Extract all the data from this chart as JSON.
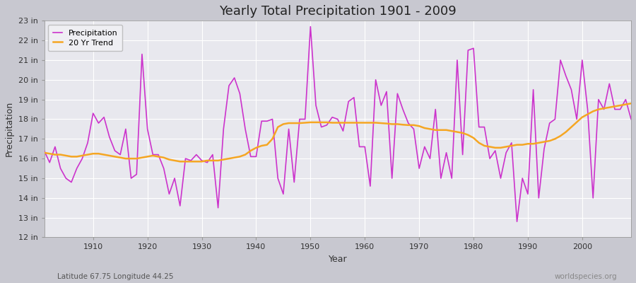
{
  "title": "Yearly Total Precipitation 1901 - 2009",
  "xlabel": "Year",
  "ylabel": "Precipitation",
  "subtitle_left": "Latitude 67.75 Longitude 44.25",
  "subtitle_right": "worldspecies.org",
  "ylim": [
    12,
    23
  ],
  "ytick_labels": [
    "12 in",
    "13 in",
    "14 in",
    "15 in",
    "16 in",
    "17 in",
    "18 in",
    "19 in",
    "20 in",
    "21 in",
    "22 in",
    "23 in"
  ],
  "ytick_values": [
    12,
    13,
    14,
    15,
    16,
    17,
    18,
    19,
    20,
    21,
    22,
    23
  ],
  "fig_bg_color": "#c8c8d0",
  "plot_bg_color": "#e8e8ee",
  "grid_color": "#ffffff",
  "precip_color": "#cc33cc",
  "trend_color": "#f5a623",
  "years": [
    1901,
    1902,
    1903,
    1904,
    1905,
    1906,
    1907,
    1908,
    1909,
    1910,
    1911,
    1912,
    1913,
    1914,
    1915,
    1916,
    1917,
    1918,
    1919,
    1920,
    1921,
    1922,
    1923,
    1924,
    1925,
    1926,
    1927,
    1928,
    1929,
    1930,
    1931,
    1932,
    1933,
    1934,
    1935,
    1936,
    1937,
    1938,
    1939,
    1940,
    1941,
    1942,
    1943,
    1944,
    1945,
    1946,
    1947,
    1948,
    1949,
    1950,
    1951,
    1952,
    1953,
    1954,
    1955,
    1956,
    1957,
    1958,
    1959,
    1960,
    1961,
    1962,
    1963,
    1964,
    1965,
    1966,
    1967,
    1968,
    1969,
    1970,
    1971,
    1972,
    1973,
    1974,
    1975,
    1976,
    1977,
    1978,
    1979,
    1980,
    1981,
    1982,
    1983,
    1984,
    1985,
    1986,
    1987,
    1988,
    1989,
    1990,
    1991,
    1992,
    1993,
    1994,
    1995,
    1996,
    1997,
    1998,
    1999,
    2000,
    2001,
    2002,
    2003,
    2004,
    2005,
    2006,
    2007,
    2008,
    2009
  ],
  "precip": [
    16.4,
    15.8,
    16.6,
    15.5,
    15.0,
    14.8,
    15.5,
    16.0,
    16.8,
    18.3,
    17.8,
    18.1,
    17.1,
    16.4,
    16.2,
    17.5,
    15.0,
    15.2,
    21.3,
    17.5,
    16.2,
    16.2,
    15.5,
    14.2,
    15.0,
    13.6,
    16.0,
    15.9,
    16.2,
    15.9,
    15.8,
    16.2,
    13.5,
    17.5,
    19.7,
    20.1,
    19.3,
    17.5,
    16.1,
    16.1,
    17.9,
    17.9,
    18.0,
    15.0,
    14.2,
    17.5,
    14.8,
    18.0,
    18.0,
    22.7,
    18.7,
    17.6,
    17.7,
    18.1,
    18.0,
    17.4,
    18.9,
    19.1,
    16.6,
    16.6,
    14.6,
    20.0,
    18.7,
    19.4,
    15.0,
    19.3,
    18.5,
    17.8,
    17.5,
    15.5,
    16.6,
    16.0,
    18.5,
    15.0,
    16.3,
    15.0,
    21.0,
    16.2,
    21.5,
    21.6,
    17.6,
    17.6,
    16.0,
    16.4,
    15.0,
    16.3,
    16.8,
    12.8,
    15.0,
    14.2,
    19.5,
    14.0,
    16.5,
    17.8,
    18.0,
    21.0,
    20.2,
    19.5,
    18.0,
    21.0,
    18.5,
    14.0,
    19.0,
    18.5,
    19.8,
    18.5,
    18.5,
    19.0,
    18.0
  ],
  "trend": [
    16.3,
    16.25,
    16.2,
    16.2,
    16.15,
    16.1,
    16.1,
    16.15,
    16.2,
    16.25,
    16.25,
    16.2,
    16.15,
    16.1,
    16.05,
    16.0,
    16.0,
    16.0,
    16.05,
    16.1,
    16.15,
    16.1,
    16.05,
    15.95,
    15.9,
    15.85,
    15.85,
    15.85,
    15.85,
    15.85,
    15.9,
    15.9,
    15.9,
    15.95,
    16.0,
    16.05,
    16.1,
    16.2,
    16.4,
    16.55,
    16.65,
    16.7,
    17.0,
    17.6,
    17.75,
    17.8,
    17.8,
    17.8,
    17.82,
    17.84,
    17.84,
    17.84,
    17.84,
    17.82,
    17.82,
    17.82,
    17.82,
    17.82,
    17.82,
    17.82,
    17.82,
    17.82,
    17.8,
    17.78,
    17.75,
    17.75,
    17.72,
    17.7,
    17.7,
    17.65,
    17.55,
    17.5,
    17.45,
    17.45,
    17.45,
    17.4,
    17.35,
    17.3,
    17.2,
    17.05,
    16.8,
    16.65,
    16.6,
    16.55,
    16.55,
    16.6,
    16.65,
    16.7,
    16.7,
    16.75,
    16.75,
    16.8,
    16.85,
    16.9,
    17.0,
    17.15,
    17.35,
    17.6,
    17.85,
    18.1,
    18.25,
    18.4,
    18.5,
    18.55,
    18.6,
    18.65,
    18.7,
    18.75,
    18.8
  ],
  "xticks": [
    1910,
    1920,
    1930,
    1940,
    1950,
    1960,
    1970,
    1980,
    1990,
    2000
  ],
  "xlim": [
    1901,
    2009
  ]
}
